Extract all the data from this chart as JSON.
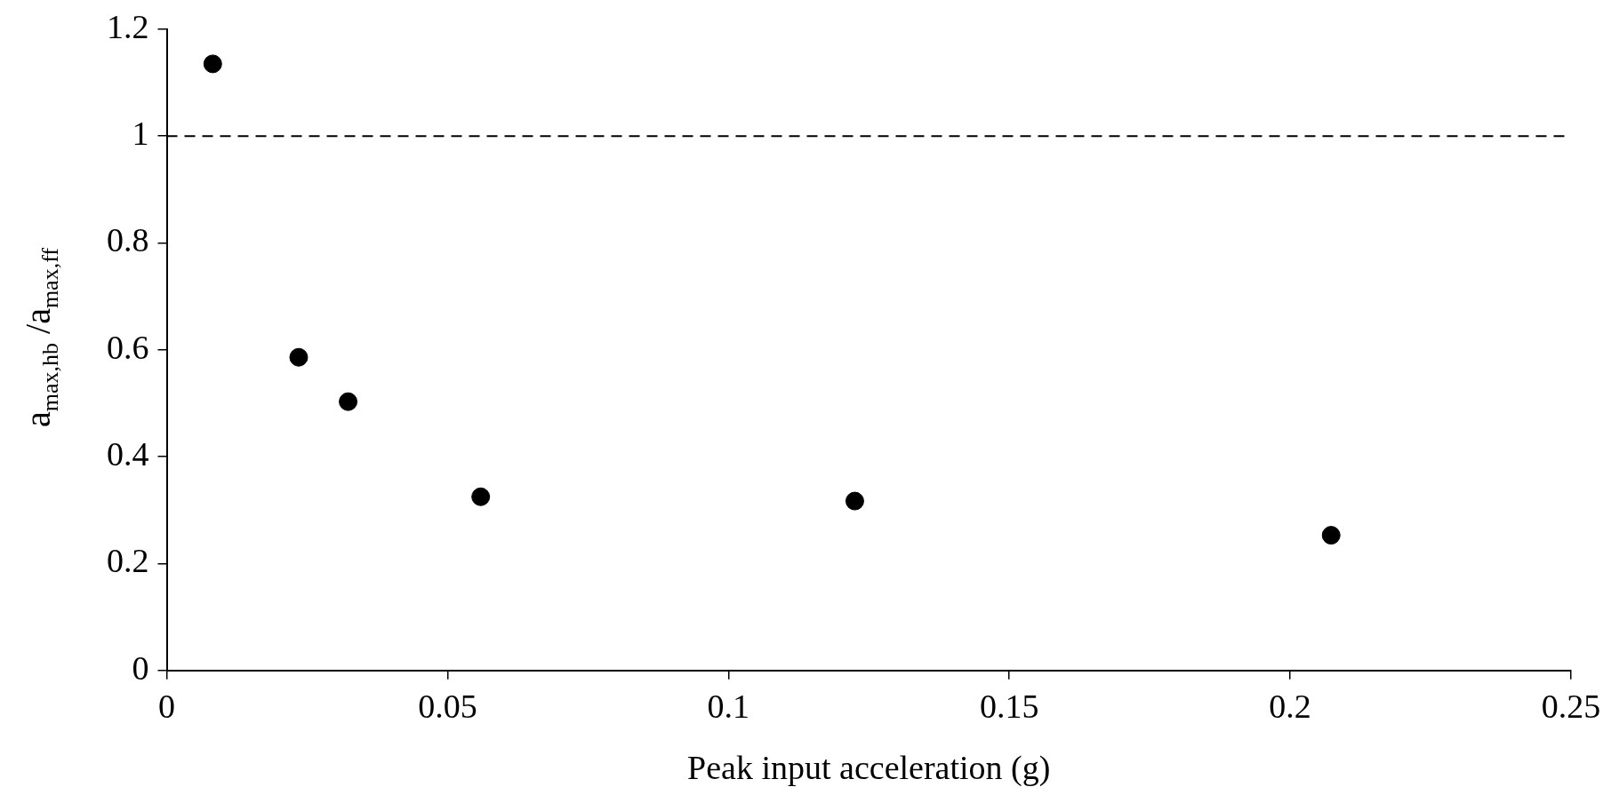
{
  "chart_data": {
    "type": "scatter",
    "xlabel": "Peak input acceleration (g)",
    "ylabel": "a$_{max,hb}$ /a$_{max,ff}$",
    "series": [
      {
        "color": "#000000",
        "x": [
          0.0082,
          0.0235,
          0.0323,
          0.0559,
          0.1225,
          0.2073
        ],
        "values": [
          1.135,
          0.586,
          0.503,
          0.325,
          0.317,
          0.253
        ]
      }
    ],
    "xlim": [
      0,
      0.25
    ],
    "xticks": [
      0,
      0.05,
      0.1,
      0.15,
      0.2,
      0.25
    ],
    "ylim": [
      0,
      1.2
    ],
    "yticks": [
      0,
      0.2,
      0.4,
      0.6,
      0.8,
      1,
      1.2
    ],
    "ref_lines": [
      {
        "axis": "y",
        "value": 1,
        "color": "#000000",
        "line_style": "dashed"
      }
    ],
    "grid": false,
    "legend": false,
    "marker": "circle"
  }
}
